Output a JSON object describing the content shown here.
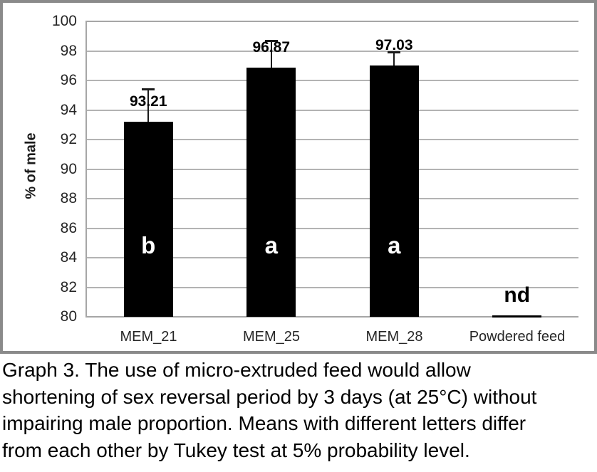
{
  "chart_data": {
    "type": "bar",
    "title": "",
    "ylabel": "% of male",
    "xlabel": "",
    "ylim": [
      80,
      100
    ],
    "ytick_interval": 2,
    "yticks": [
      100,
      98,
      96,
      94,
      92,
      90,
      88,
      86,
      84,
      82,
      80
    ],
    "categories": [
      "MEM_21",
      "MEM_25",
      "MEM_28",
      "Powdered feed"
    ],
    "values": [
      93.21,
      96.87,
      97.03,
      null
    ],
    "value_labels": [
      "93.21",
      "96.87",
      "97.03",
      ""
    ],
    "error_bar_tops": [
      95.4,
      98.7,
      97.95,
      null
    ],
    "group_letters": [
      "b",
      "a",
      "a",
      "nd"
    ],
    "grid": true,
    "legend": "none",
    "bar_color": "#000000",
    "grid_color": "#b3b3b3",
    "axis_color": "#a6a6a6",
    "tick_text_color": "#262626"
  },
  "caption": {
    "lines": [
      "Graph 3. The use of micro-extruded feed would allow",
      "shortening of sex reversal period by 3 days (at 25°C) without",
      "impairing male proportion. Means with different letters differ",
      "from each other by Tukey test at 5% probability level."
    ]
  }
}
